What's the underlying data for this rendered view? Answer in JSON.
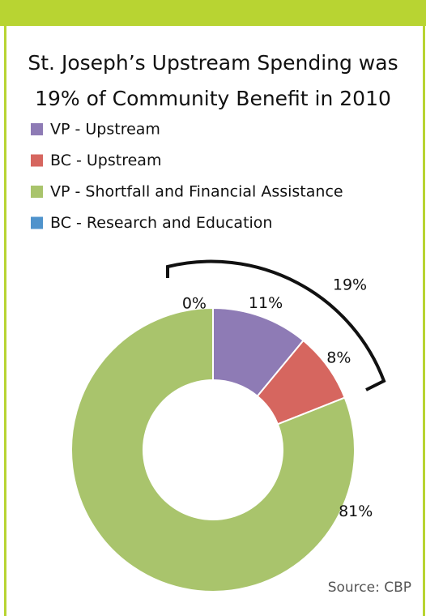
{
  "chart_data": {
    "type": "pie",
    "donut": true,
    "title": "St. Joseph’s Upstream Spending was 19% of Community Benefit in 2010",
    "categories": [
      "VP - Upstream",
      "BC - Upstream",
      "VP - Shortfall and Financial Assistance",
      "BC - Research and Education"
    ],
    "values": [
      11,
      8,
      81,
      0
    ],
    "value_labels": [
      "11%",
      "8%",
      "81%",
      "0%"
    ],
    "colors": [
      "#8e7bb5",
      "#d6665f",
      "#a9c46c",
      "#4f93cc"
    ],
    "legend": "top-left",
    "annotation": "19%",
    "source": "Source: CBP"
  }
}
